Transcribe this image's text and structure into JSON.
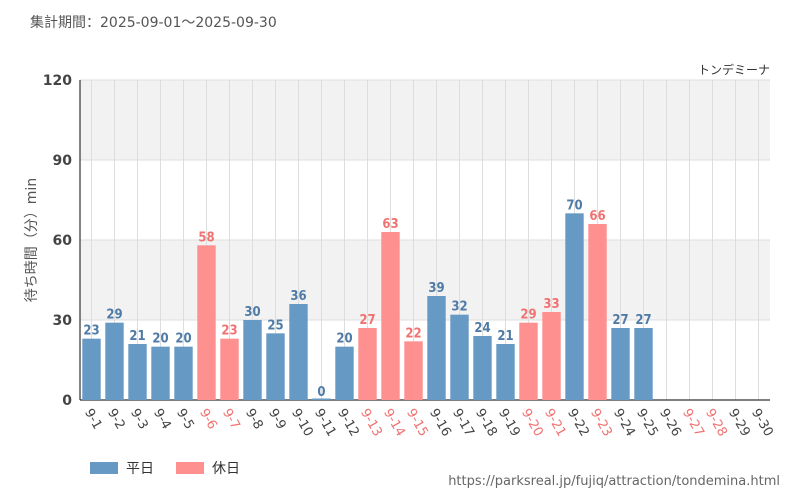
{
  "header": {
    "period": "集計期間：2025-09-01〜2025-09-30",
    "attraction": "トンデミーナ"
  },
  "source_url": "https://parksreal.jp/fujiq/attraction/tondemina.html",
  "colors": {
    "weekday": "#6699c4",
    "holiday": "#ff9090",
    "weekday_label": "#4f7ba6",
    "holiday_label": "#f07272",
    "band": "#f2f2f2",
    "grid": "#dddddd"
  },
  "chart_data": {
    "type": "bar",
    "ylabel": "待ち時間（分）min",
    "ylim": [
      0,
      120
    ],
    "yticks": [
      0,
      30,
      60,
      90,
      120
    ],
    "categories": [
      "9-1",
      "9-2",
      "9-3",
      "9-4",
      "9-5",
      "9-6",
      "9-7",
      "9-8",
      "9-9",
      "9-10",
      "9-11",
      "9-12",
      "9-13",
      "9-14",
      "9-15",
      "9-16",
      "9-17",
      "9-18",
      "9-19",
      "9-20",
      "9-21",
      "9-22",
      "9-23",
      "9-24",
      "9-25",
      "9-26",
      "9-27",
      "9-28",
      "9-29",
      "9-30"
    ],
    "values": [
      23,
      29,
      21,
      20,
      20,
      58,
      23,
      30,
      25,
      36,
      0,
      20,
      27,
      63,
      22,
      39,
      32,
      24,
      21,
      29,
      33,
      70,
      66,
      27,
      27,
      null,
      null,
      null,
      null,
      null
    ],
    "day_type": [
      "weekday",
      "weekday",
      "weekday",
      "weekday",
      "weekday",
      "holiday",
      "holiday",
      "weekday",
      "weekday",
      "weekday",
      "weekday",
      "weekday",
      "holiday",
      "holiday",
      "holiday",
      "weekday",
      "weekday",
      "weekday",
      "weekday",
      "holiday",
      "holiday",
      "weekday",
      "holiday",
      "weekday",
      "weekday",
      "weekday",
      "holiday",
      "holiday",
      "weekday",
      "weekday"
    ],
    "legend": [
      {
        "key": "weekday",
        "label": "平日"
      },
      {
        "key": "holiday",
        "label": "休日"
      }
    ],
    "legend_position": "bottom-left",
    "grid": true
  }
}
